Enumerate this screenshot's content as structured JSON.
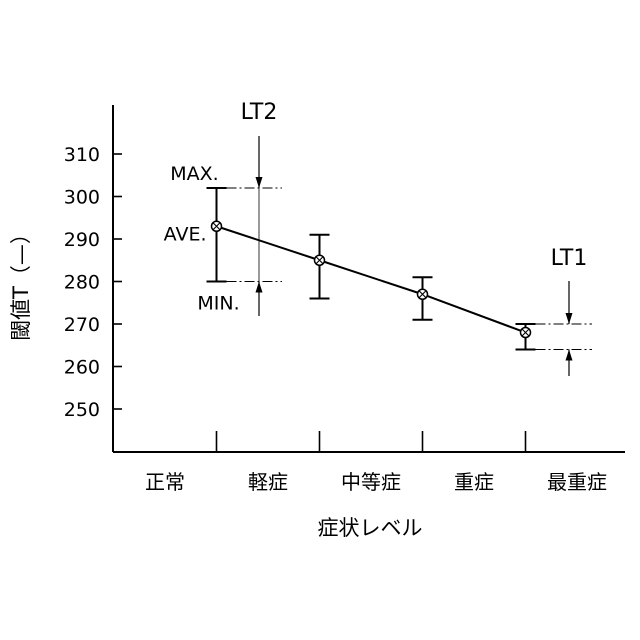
{
  "chart_data": {
    "type": "line",
    "xlabel": "症状レベル",
    "ylabel": "閾値T（—）",
    "ylim": [
      240,
      320
    ],
    "yticks": [
      250,
      260,
      270,
      280,
      290,
      300,
      310
    ],
    "categories": [
      "正常",
      "軽症",
      "中等症",
      "重症",
      "最重症"
    ],
    "grid": false,
    "series": [
      {
        "points": [
          {
            "category": "軽症",
            "ave": 293,
            "min": 280,
            "max": 302
          },
          {
            "category": "中等症",
            "ave": 285,
            "min": 276,
            "max": 291
          },
          {
            "category": "重症",
            "ave": 277,
            "min": 271,
            "max": 281
          },
          {
            "category": "最重症",
            "ave": 268,
            "min": 264,
            "max": 270
          }
        ]
      }
    ],
    "annotations": {
      "max_label": "MAX.",
      "ave_label": "AVE.",
      "min_label": "MIN.",
      "lt2_label": "LT2",
      "lt1_label": "LT1"
    }
  }
}
